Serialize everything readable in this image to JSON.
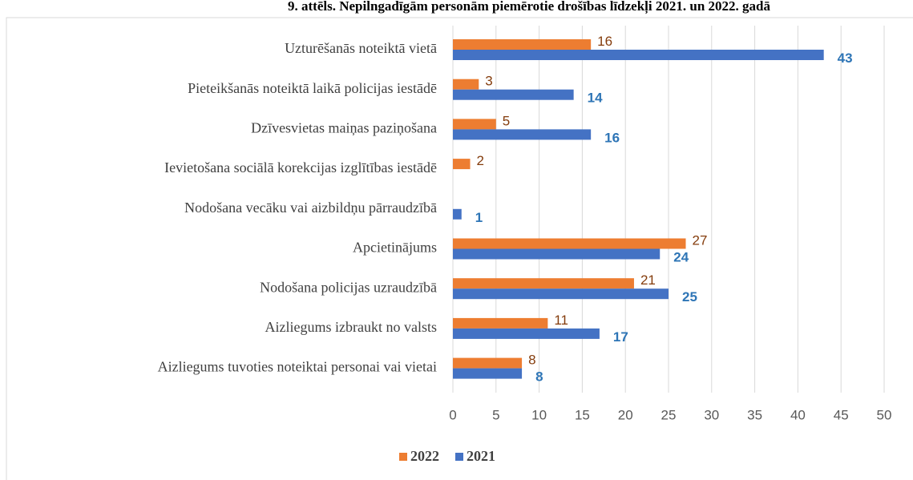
{
  "chart_data": {
    "type": "bar",
    "orientation": "horizontal",
    "title": "9. attēls. Nepilngadīgām personām piemērotie drošības līdzekļi 2021. un 2022. gadā",
    "categories": [
      "Uzturēšanās noteiktā vietā",
      "Pieteikšanās noteiktā laikā policijas iestādē",
      "Dzīvesvietas maiņas paziņošana",
      "Ievietošana sociālā korekcijas izglītības iestādē",
      "Nodošana vecāku vai aizbildņu pārraudzībā",
      "Apcietinājums",
      "Nodošana policijas uzraudzībā",
      "Aizliegums izbraukt no valsts",
      "Aizliegums tuvoties noteiktai personai vai vietai"
    ],
    "series": [
      {
        "name": "2022",
        "color": "#ed7d31",
        "values": [
          16,
          3,
          5,
          2,
          null,
          27,
          21,
          11,
          8
        ]
      },
      {
        "name": "2021",
        "color": "#4472c4",
        "values": [
          43,
          14,
          16,
          null,
          1,
          24,
          25,
          17,
          8
        ]
      }
    ],
    "xlim": [
      0,
      50
    ],
    "xticks": [
      0,
      5,
      10,
      15,
      20,
      25,
      30,
      35,
      40,
      45,
      50
    ],
    "grid": true,
    "legend": "bottom"
  }
}
